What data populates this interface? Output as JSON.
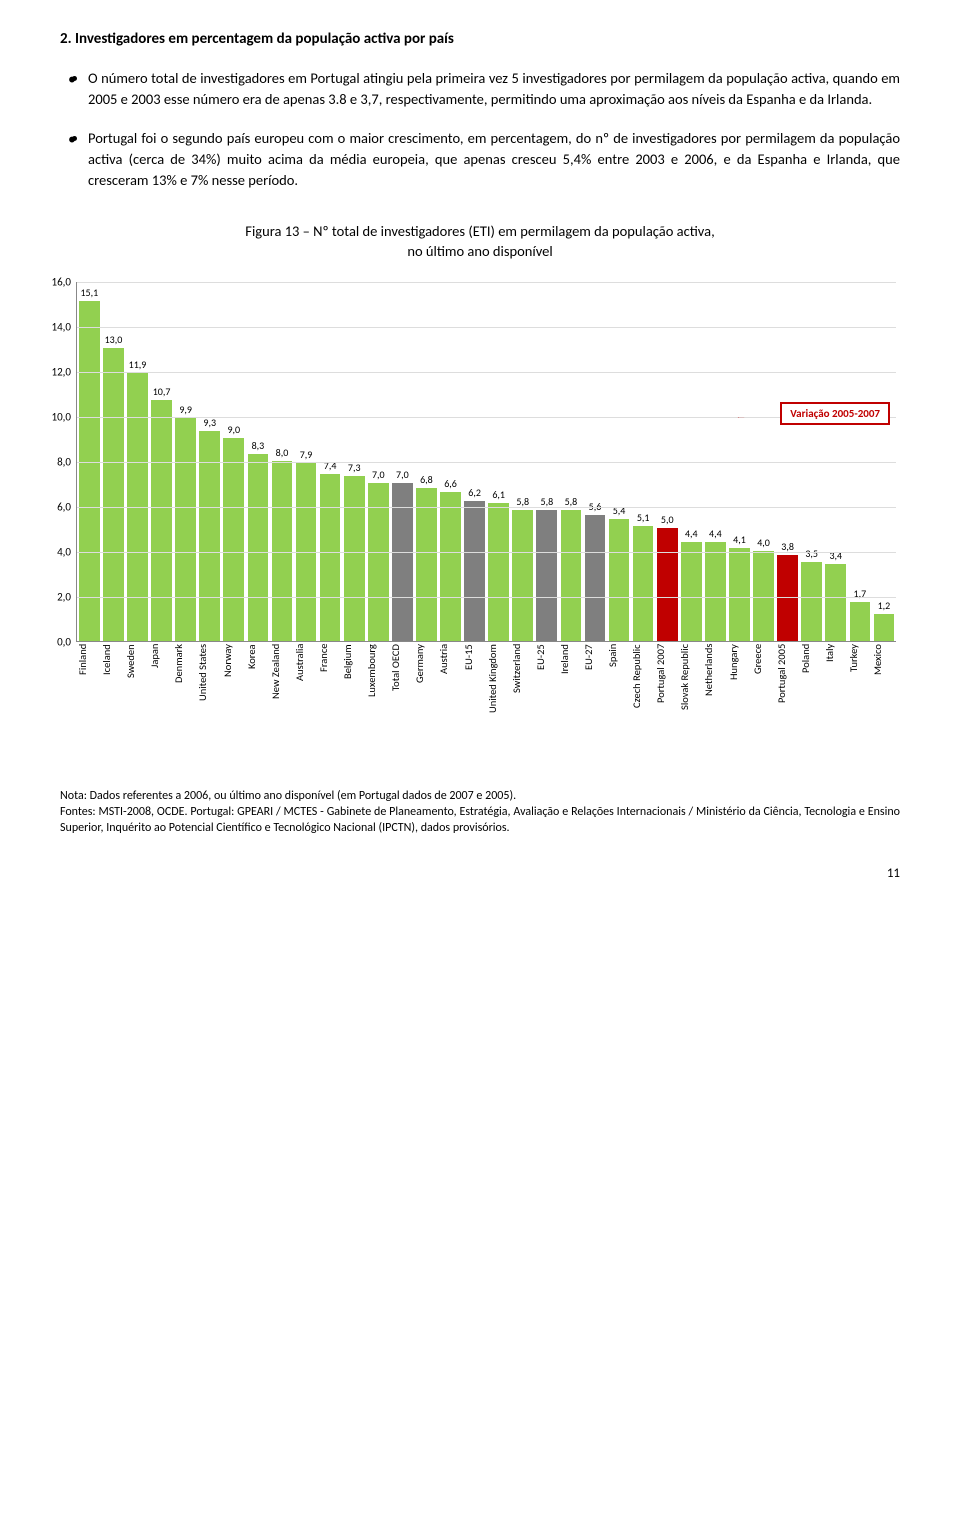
{
  "section": {
    "title": "2.  Investigadores em percentagem da população activa por país"
  },
  "bullets": [
    "O número total de investigadores em Portugal atingiu pela primeira vez 5 investigadores por permilagem da população activa, quando em 2005 e 2003 esse número era de apenas 3.8 e 3,7, respectivamente, permitindo uma aproximação aos níveis da Espanha e da Irlanda.",
    "Portugal foi o segundo país europeu com o maior crescimento, em percentagem, do nº de investigadores por permilagem da população activa (cerca de 34%) muito acima da média europeia, que apenas cresceu 5,4% entre 2003 e 2006, e da Espanha e Irlanda, que cresceram 13% e 7% nesse período."
  ],
  "figure": {
    "caption_line1": "Figura 13 – Nº total de investigadores (ETI) em permilagem da população activa,",
    "caption_line2": "no último ano disponível"
  },
  "chart": {
    "ylim_max": 16,
    "ytick_step": 2,
    "ytick_decimal": ",0",
    "bar_default_color": "#92d050",
    "legend_text": "Variação 2005-2007",
    "legend_color": "#c00000",
    "bars": [
      {
        "label": "Finland",
        "value": 15.1,
        "text": "15,1"
      },
      {
        "label": "Iceland",
        "value": 13.0,
        "text": "13,0"
      },
      {
        "label": "Sweden",
        "value": 11.9,
        "text": "11,9"
      },
      {
        "label": "Japan",
        "value": 10.7,
        "text": "10,7"
      },
      {
        "label": "Denmark",
        "value": 9.9,
        "text": "9,9"
      },
      {
        "label": "United States",
        "value": 9.3,
        "text": "9,3"
      },
      {
        "label": "Norway",
        "value": 9.0,
        "text": "9,0"
      },
      {
        "label": "Korea",
        "value": 8.3,
        "text": "8,3"
      },
      {
        "label": "New Zealand",
        "value": 8.0,
        "text": "8,0"
      },
      {
        "label": "Australia",
        "value": 7.9,
        "text": "7,9"
      },
      {
        "label": "France",
        "value": 7.4,
        "text": "7,4"
      },
      {
        "label": "Belgium",
        "value": 7.3,
        "text": "7,3"
      },
      {
        "label": "Luxembourg",
        "value": 7.0,
        "text": "7,0"
      },
      {
        "label": "Total OECD",
        "value": 7.0,
        "text": "7,0",
        "color": "#7f7f7f"
      },
      {
        "label": "Germany",
        "value": 6.8,
        "text": "6,8"
      },
      {
        "label": "Austria",
        "value": 6.6,
        "text": "6,6"
      },
      {
        "label": "EU-15",
        "value": 6.2,
        "text": "6,2",
        "color": "#7f7f7f"
      },
      {
        "label": "United Kingdom",
        "value": 6.1,
        "text": "6,1"
      },
      {
        "label": "Switzerland",
        "value": 5.8,
        "text": "5,8"
      },
      {
        "label": "EU-25",
        "value": 5.8,
        "text": "5,8",
        "color": "#7f7f7f"
      },
      {
        "label": "Ireland",
        "value": 5.8,
        "text": "5,8"
      },
      {
        "label": "EU-27",
        "value": 5.6,
        "text": "5,6",
        "color": "#7f7f7f"
      },
      {
        "label": "Spain",
        "value": 5.4,
        "text": "5,4"
      },
      {
        "label": "Czech Republic",
        "value": 5.1,
        "text": "5,1"
      },
      {
        "label": "Portugal 2007",
        "value": 5.0,
        "text": "5,0",
        "color": "#c00000"
      },
      {
        "label": "Slovak Republic",
        "value": 4.4,
        "text": "4,4"
      },
      {
        "label": "Netherlands",
        "value": 4.4,
        "text": "4,4"
      },
      {
        "label": "Hungary",
        "value": 4.1,
        "text": "4,1"
      },
      {
        "label": "Greece",
        "value": 4.0,
        "text": "4,0"
      },
      {
        "label": "Portugal 2005",
        "value": 3.8,
        "text": "3,8",
        "color": "#c00000"
      },
      {
        "label": "Poland",
        "value": 3.5,
        "text": "3,5"
      },
      {
        "label": "Italy",
        "value": 3.4,
        "text": "3,4"
      },
      {
        "label": "Turkey",
        "value": 1.7,
        "text": "1,7"
      },
      {
        "label": "Mexico",
        "value": 1.2,
        "text": "1,2"
      }
    ]
  },
  "notes": {
    "line1": "Nota: Dados referentes a 2006, ou último ano disponível (em Portugal dados de 2007 e 2005).",
    "line2": "Fontes: MSTI-2008, OCDE. Portugal: GPEARI / MCTES - Gabinete de Planeamento, Estratégia, Avaliação e Relações Internacionais / Ministério da Ciência, Tecnologia e Ensino Superior, Inquérito ao Potencial Científico e Tecnológico Nacional (IPCTN), dados provisórios."
  },
  "page_number": "11"
}
